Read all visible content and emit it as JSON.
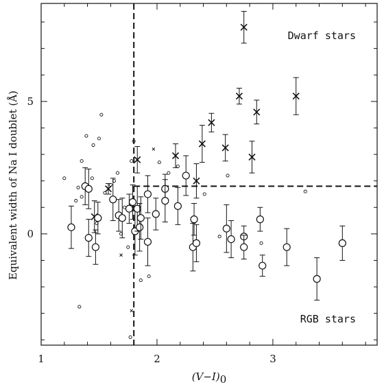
{
  "chart_data": {
    "type": "scatter",
    "xlabel_main": "(V−I)",
    "xlabel_sub": "0",
    "ylabel": "Equivalent width of Na I doublet (Å)",
    "xlim": [
      1.0,
      3.9
    ],
    "ylim": [
      -4.2,
      8.7
    ],
    "x_ticks": [
      1,
      2,
      3
    ],
    "y_ticks": [
      0,
      5
    ],
    "annotations": [
      "Dwarf stars",
      "RGB stars"
    ],
    "dividers": {
      "vertical_x": 1.8,
      "horizontal_y": 1.8,
      "horizontal_from_x": 1.8
    },
    "series": [
      {
        "marker": "cross",
        "points": [
          {
            "x": 2.75,
            "y": 7.8,
            "err": 0.6
          },
          {
            "x": 2.71,
            "y": 5.2,
            "err": 0.3
          },
          {
            "x": 3.2,
            "y": 5.2,
            "err": 0.7
          },
          {
            "x": 2.86,
            "y": 4.6,
            "err": 0.45
          },
          {
            "x": 2.47,
            "y": 4.2,
            "err": 0.35
          },
          {
            "x": 2.39,
            "y": 3.4,
            "err": 0.7
          },
          {
            "x": 2.59,
            "y": 3.25,
            "err": 0.5
          },
          {
            "x": 2.82,
            "y": 2.9,
            "err": 0.6
          },
          {
            "x": 2.16,
            "y": 2.95,
            "err": 0.45
          },
          {
            "x": 1.83,
            "y": 2.8,
            "err": 0.5
          },
          {
            "x": 2.34,
            "y": 2.0,
            "err": 0.65
          },
          {
            "x": 1.58,
            "y": 1.7,
            "err": 0.2
          },
          {
            "x": 1.46,
            "y": 0.65,
            "err": 0.6
          }
        ]
      },
      {
        "marker": "circle",
        "points": [
          {
            "x": 1.26,
            "y": 0.25,
            "err": 0.8
          },
          {
            "x": 1.38,
            "y": 1.8,
            "err": 0.7
          },
          {
            "x": 1.41,
            "y": 1.7,
            "err": 0.75
          },
          {
            "x": 1.41,
            "y": -0.15,
            "err": 0.7
          },
          {
            "x": 1.47,
            "y": -0.5,
            "err": 0.65
          },
          {
            "x": 1.49,
            "y": 0.6,
            "err": 0.6
          },
          {
            "x": 1.62,
            "y": 1.3,
            "err": 0.8
          },
          {
            "x": 1.67,
            "y": 0.7,
            "err": 0.6
          },
          {
            "x": 1.7,
            "y": 0.6,
            "err": 0.75
          },
          {
            "x": 1.76,
            "y": 0.95,
            "err": 0.55
          },
          {
            "x": 1.79,
            "y": 1.2,
            "err": 0.65
          },
          {
            "x": 1.81,
            "y": 0.1,
            "err": 0.9
          },
          {
            "x": 1.83,
            "y": 0.95,
            "err": 0.85
          },
          {
            "x": 1.85,
            "y": 0.25,
            "err": 0.9
          },
          {
            "x": 1.86,
            "y": 0.6,
            "err": 0.8
          },
          {
            "x": 1.92,
            "y": 1.5,
            "err": 0.7
          },
          {
            "x": 1.92,
            "y": -0.3,
            "err": 0.9
          },
          {
            "x": 1.99,
            "y": 0.75,
            "err": 0.6
          },
          {
            "x": 2.07,
            "y": 1.7,
            "err": 0.55
          },
          {
            "x": 2.07,
            "y": 1.25,
            "err": 0.8
          },
          {
            "x": 2.18,
            "y": 1.05,
            "err": 0.7
          },
          {
            "x": 2.25,
            "y": 2.2,
            "err": 0.75
          },
          {
            "x": 2.31,
            "y": -0.5,
            "err": 0.9
          },
          {
            "x": 2.32,
            "y": 0.55,
            "err": 0.6
          },
          {
            "x": 2.34,
            "y": -0.35,
            "err": 0.7
          },
          {
            "x": 2.6,
            "y": 0.2,
            "err": 0.9
          },
          {
            "x": 2.64,
            "y": -0.2,
            "err": 0.7
          },
          {
            "x": 2.75,
            "y": -0.1,
            "err": 0.4
          },
          {
            "x": 2.75,
            "y": -0.5,
            "err": 0.45
          },
          {
            "x": 2.89,
            "y": 0.55,
            "err": 0.45
          },
          {
            "x": 2.91,
            "y": -1.2,
            "err": 0.4
          },
          {
            "x": 3.12,
            "y": -0.5,
            "err": 0.7
          },
          {
            "x": 3.38,
            "y": -1.7,
            "err": 0.8
          },
          {
            "x": 3.6,
            "y": -0.35,
            "err": 0.65
          }
        ]
      },
      {
        "marker": "small-circle",
        "points": [
          {
            "x": 1.2,
            "y": 2.1
          },
          {
            "x": 1.3,
            "y": 1.25
          },
          {
            "x": 1.32,
            "y": 1.75
          },
          {
            "x": 1.35,
            "y": 1.4
          },
          {
            "x": 1.39,
            "y": 3.7
          },
          {
            "x": 1.45,
            "y": 3.35
          },
          {
            "x": 1.48,
            "y": 0.4
          },
          {
            "x": 1.5,
            "y": 3.6
          },
          {
            "x": 1.52,
            "y": 4.5
          },
          {
            "x": 1.35,
            "y": 2.75
          },
          {
            "x": 1.44,
            "y": 2.1
          },
          {
            "x": 1.33,
            "y": -2.75
          },
          {
            "x": 1.55,
            "y": 1.55
          },
          {
            "x": 1.6,
            "y": 1.85
          },
          {
            "x": 1.63,
            "y": 2.0
          },
          {
            "x": 1.66,
            "y": 2.3
          },
          {
            "x": 1.69,
            "y": 0.0
          },
          {
            "x": 1.72,
            "y": 1.0
          },
          {
            "x": 1.75,
            "y": -0.5
          },
          {
            "x": 1.78,
            "y": 2.75
          },
          {
            "x": 1.8,
            "y": 3.5
          },
          {
            "x": 1.77,
            "y": -3.9
          },
          {
            "x": 1.86,
            "y": -1.75
          },
          {
            "x": 1.93,
            "y": -1.6
          },
          {
            "x": 2.02,
            "y": 2.7
          },
          {
            "x": 2.1,
            "y": 2.3
          },
          {
            "x": 2.18,
            "y": 2.55
          },
          {
            "x": 2.41,
            "y": 1.5
          },
          {
            "x": 2.54,
            "y": -0.1
          },
          {
            "x": 2.61,
            "y": 2.2
          },
          {
            "x": 2.9,
            "y": -0.35
          },
          {
            "x": 3.28,
            "y": 1.6
          }
        ]
      },
      {
        "marker": "small-cross",
        "points": [
          {
            "x": 1.97,
            "y": 3.2
          },
          {
            "x": 1.69,
            "y": -0.8
          },
          {
            "x": 1.78,
            "y": -2.9
          }
        ]
      }
    ]
  }
}
